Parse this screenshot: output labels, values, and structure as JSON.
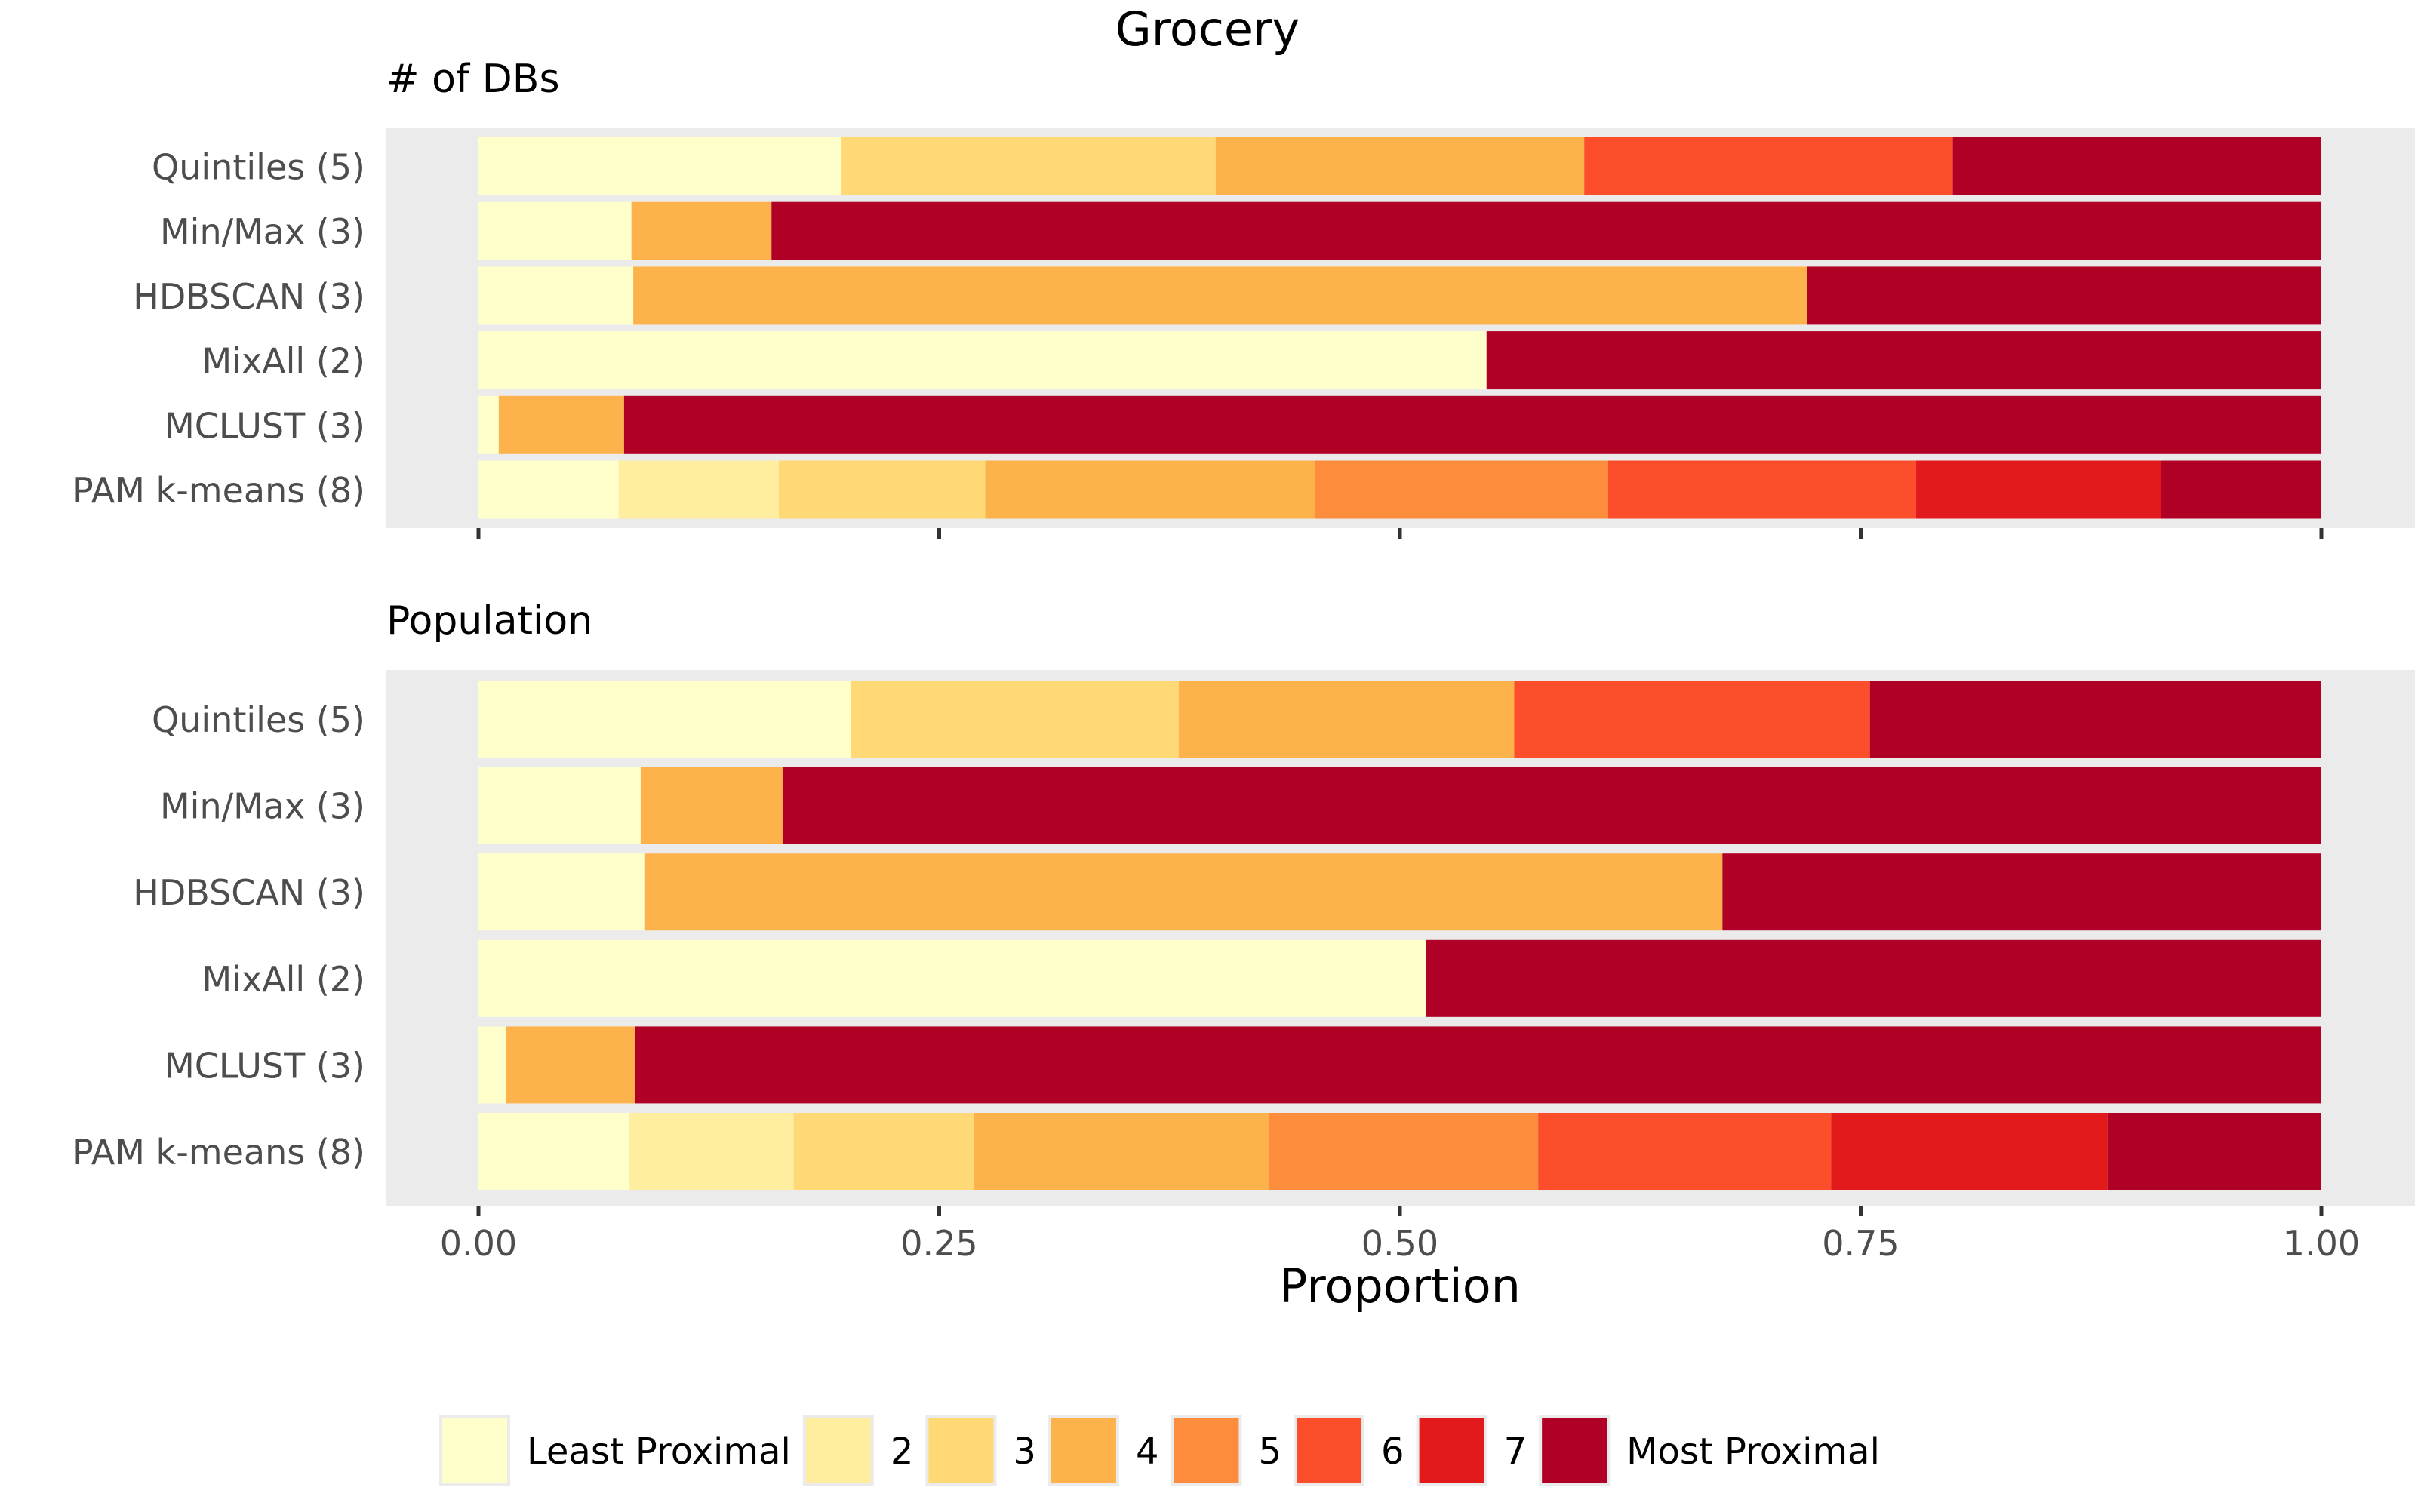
{
  "chart_data": {
    "type": "bar",
    "orientation": "horizontal",
    "stacked": true,
    "title": "Grocery",
    "xlabel": "Proportion",
    "ylabel": "",
    "xlim": [
      0,
      1
    ],
    "x_ticks": [
      "0.00",
      "0.25",
      "0.50",
      "0.75",
      "1.00"
    ],
    "x_tick_values": [
      0,
      0.25,
      0.5,
      0.75,
      1
    ],
    "legend": {
      "position": "bottom",
      "entries": [
        "Least Proximal",
        "2",
        "3",
        "4",
        "5",
        "6",
        "7",
        "Most Proximal"
      ]
    },
    "colors": {
      "Least Proximal": "#FFFFCC",
      "2": "#FFEDA0",
      "3": "#FED976",
      "4": "#FEB24C",
      "5": "#FD8D3C",
      "6": "#FC4E2A",
      "7": "#E31A1C",
      "Most Proximal": "#B10026"
    },
    "panels": [
      {
        "title": "# of DBs",
        "categories": [
          "Quintiles (5)",
          "Min/Max (3)",
          "HDBSCAN (3)",
          "MixAll (2)",
          "MCLUST (3)",
          "PAM k-means (8)"
        ],
        "rows": [
          {
            "category": "Quintiles (5)",
            "segments": [
              {
                "level": "Least Proximal",
                "value": 0.197
              },
              {
                "level": "3",
                "value": 0.203
              },
              {
                "level": "4",
                "value": 0.2
              },
              {
                "level": "6",
                "value": 0.2
              },
              {
                "level": "Most Proximal",
                "value": 0.2
              }
            ]
          },
          {
            "category": "Min/Max (3)",
            "segments": [
              {
                "level": "Least Proximal",
                "value": 0.083
              },
              {
                "level": "4",
                "value": 0.076
              },
              {
                "level": "Most Proximal",
                "value": 0.841
              }
            ]
          },
          {
            "category": "HDBSCAN (3)",
            "segments": [
              {
                "level": "Least Proximal",
                "value": 0.084
              },
              {
                "level": "4",
                "value": 0.637
              },
              {
                "level": "Most Proximal",
                "value": 0.279
              }
            ]
          },
          {
            "category": "MixAll (2)",
            "segments": [
              {
                "level": "Least Proximal",
                "value": 0.547
              },
              {
                "level": "Most Proximal",
                "value": 0.453
              }
            ]
          },
          {
            "category": "MCLUST (3)",
            "segments": [
              {
                "level": "Least Proximal",
                "value": 0.011
              },
              {
                "level": "4",
                "value": 0.068
              },
              {
                "level": "Most Proximal",
                "value": 0.921
              }
            ]
          },
          {
            "category": "PAM k-means (8)",
            "segments": [
              {
                "level": "Least Proximal",
                "value": 0.076
              },
              {
                "level": "2",
                "value": 0.087
              },
              {
                "level": "3",
                "value": 0.112
              },
              {
                "level": "4",
                "value": 0.179
              },
              {
                "level": "5",
                "value": 0.159
              },
              {
                "level": "6",
                "value": 0.167
              },
              {
                "level": "7",
                "value": 0.133
              },
              {
                "level": "Most Proximal",
                "value": 0.087
              }
            ]
          }
        ]
      },
      {
        "title": "Population",
        "categories": [
          "Quintiles (5)",
          "Min/Max (3)",
          "HDBSCAN (3)",
          "MixAll (2)",
          "MCLUST (3)",
          "PAM k-means (8)"
        ],
        "rows": [
          {
            "category": "Quintiles (5)",
            "segments": [
              {
                "level": "Least Proximal",
                "value": 0.202
              },
              {
                "level": "3",
                "value": 0.178
              },
              {
                "level": "4",
                "value": 0.182
              },
              {
                "level": "6",
                "value": 0.193
              },
              {
                "level": "Most Proximal",
                "value": 0.245
              }
            ]
          },
          {
            "category": "Min/Max (3)",
            "segments": [
              {
                "level": "Least Proximal",
                "value": 0.088
              },
              {
                "level": "4",
                "value": 0.077
              },
              {
                "level": "Most Proximal",
                "value": 0.835
              }
            ]
          },
          {
            "category": "HDBSCAN (3)",
            "segments": [
              {
                "level": "Least Proximal",
                "value": 0.09
              },
              {
                "level": "4",
                "value": 0.585
              },
              {
                "level": "Most Proximal",
                "value": 0.325
              }
            ]
          },
          {
            "category": "MixAll (2)",
            "segments": [
              {
                "level": "Least Proximal",
                "value": 0.514
              },
              {
                "level": "Most Proximal",
                "value": 0.486
              }
            ]
          },
          {
            "category": "MCLUST (3)",
            "segments": [
              {
                "level": "Least Proximal",
                "value": 0.015
              },
              {
                "level": "4",
                "value": 0.07
              },
              {
                "level": "Most Proximal",
                "value": 0.915
              }
            ]
          },
          {
            "category": "PAM k-means (8)",
            "segments": [
              {
                "level": "Least Proximal",
                "value": 0.082
              },
              {
                "level": "2",
                "value": 0.089
              },
              {
                "level": "3",
                "value": 0.098
              },
              {
                "level": "4",
                "value": 0.16
              },
              {
                "level": "5",
                "value": 0.146
              },
              {
                "level": "6",
                "value": 0.159
              },
              {
                "level": "7",
                "value": 0.15
              },
              {
                "level": "Most Proximal",
                "value": 0.116
              }
            ]
          }
        ]
      }
    ]
  }
}
